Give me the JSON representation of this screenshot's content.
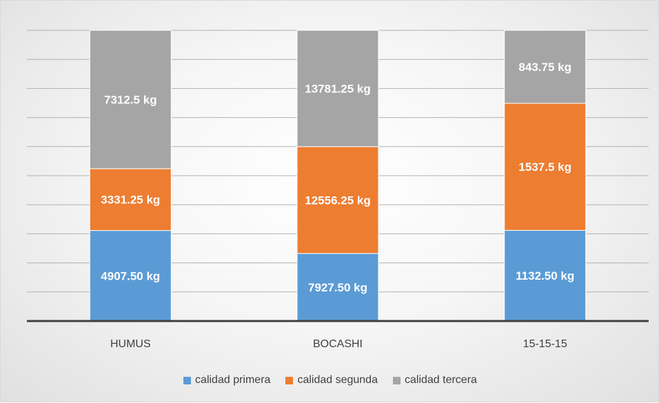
{
  "chart_data": {
    "type": "bar",
    "stacked": true,
    "categories": [
      "HUMUS",
      "BOCASHI",
      "15-15-15"
    ],
    "series": [
      {
        "name": "calidad primera",
        "color": "#5b9bd5",
        "values": [
          4907.5,
          7927.5,
          1132.5
        ],
        "labels": [
          "4907.50 kg",
          "7927.50 kg",
          "1132.50 kg"
        ]
      },
      {
        "name": "calidad segunda",
        "color": "#ed7d31",
        "values": [
          3331.25,
          12556.25,
          1537.5
        ],
        "labels": [
          "3331.25 kg",
          "12556.25 kg",
          "1537.5 kg"
        ]
      },
      {
        "name": "calidad tercera",
        "color": "#a5a5a5",
        "values": [
          7312.5,
          13781.25,
          843.75
        ],
        "labels": [
          "7312.5 kg",
          "13781.25 kg",
          "843.75 kg"
        ]
      }
    ],
    "stack_shares": [
      [
        0.3114,
        0.2126,
        0.476
      ],
      [
        0.2323,
        0.3674,
        0.4003
      ],
      [
        0.3118,
        0.4369,
        0.2513
      ]
    ],
    "grid": true,
    "legend_position": "bottom",
    "title": "",
    "xlabel": "",
    "ylabel": ""
  }
}
